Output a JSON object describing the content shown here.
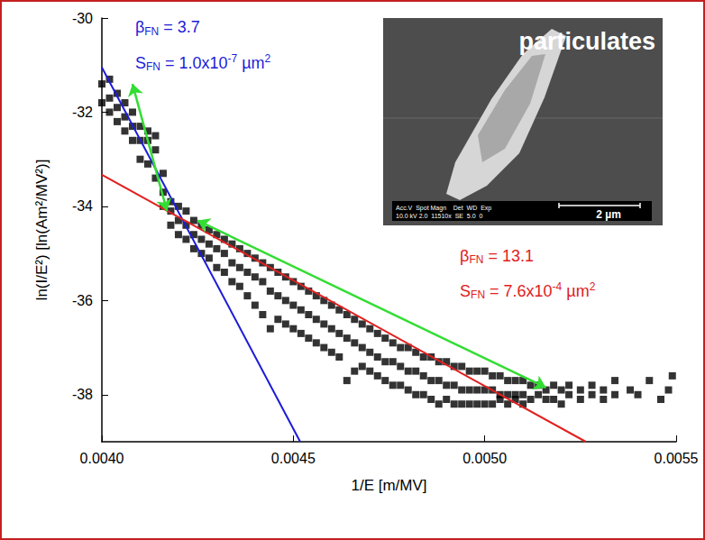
{
  "chart_data": {
    "type": "scatter",
    "xlabel": "1/E [m/MV]",
    "ylabel": "ln(I/E²) [ln(Am²/MV²)]",
    "xlim": [
      0.004,
      0.0055
    ],
    "xticks": [
      {
        "value": 0.004,
        "label": "0.0040"
      },
      {
        "value": 0.0045,
        "label": "0.0045"
      },
      {
        "value": 0.005,
        "label": "0.0050"
      },
      {
        "value": 0.0055,
        "label": "0.0055"
      }
    ],
    "ylim": [
      -39,
      -30
    ],
    "yticks": [
      -38,
      -36,
      -34,
      -32,
      -30
    ],
    "grid": false,
    "series": [
      {
        "type": "scatter",
        "color": "#000000",
        "marker": "square",
        "x": [
          0.004,
          0.004,
          0.00402,
          0.00402,
          0.00402,
          0.00404,
          0.00404,
          0.00404,
          0.00406,
          0.00406,
          0.00406,
          0.00408,
          0.00408,
          0.00408,
          0.0041,
          0.0041,
          0.0041,
          0.00412,
          0.00412,
          0.00412,
          0.00414,
          0.00414,
          0.00414,
          0.00416,
          0.00416,
          0.00416,
          0.00418,
          0.00418,
          0.00418,
          0.0042,
          0.0042,
          0.0042,
          0.00422,
          0.00422,
          0.00422,
          0.00424,
          0.00424,
          0.00424,
          0.00426,
          0.00426,
          0.00426,
          0.00428,
          0.00428,
          0.00428,
          0.0043,
          0.0043,
          0.0043,
          0.00432,
          0.00432,
          0.00432,
          0.00434,
          0.00434,
          0.00434,
          0.00436,
          0.00436,
          0.00436,
          0.00438,
          0.00438,
          0.00438,
          0.0044,
          0.0044,
          0.0044,
          0.00442,
          0.00442,
          0.00442,
          0.00444,
          0.00444,
          0.00444,
          0.00446,
          0.00446,
          0.00446,
          0.00448,
          0.00448,
          0.00448,
          0.0045,
          0.0045,
          0.0045,
          0.00452,
          0.00452,
          0.00452,
          0.00454,
          0.00454,
          0.00454,
          0.00456,
          0.00456,
          0.00456,
          0.00458,
          0.00458,
          0.00458,
          0.0046,
          0.0046,
          0.0046,
          0.00462,
          0.00462,
          0.00462,
          0.00464,
          0.00464,
          0.00464,
          0.00466,
          0.00466,
          0.00466,
          0.00468,
          0.00468,
          0.00468,
          0.0047,
          0.0047,
          0.0047,
          0.00472,
          0.00472,
          0.00472,
          0.00474,
          0.00474,
          0.00474,
          0.00476,
          0.00476,
          0.00476,
          0.00478,
          0.00478,
          0.00478,
          0.0048,
          0.0048,
          0.0048,
          0.00482,
          0.00482,
          0.00482,
          0.00484,
          0.00484,
          0.00484,
          0.00486,
          0.00486,
          0.00486,
          0.00488,
          0.00488,
          0.00488,
          0.0049,
          0.0049,
          0.0049,
          0.00492,
          0.00492,
          0.00492,
          0.00494,
          0.00494,
          0.00494,
          0.00496,
          0.00496,
          0.00496,
          0.00498,
          0.00498,
          0.00498,
          0.005,
          0.005,
          0.005,
          0.00502,
          0.00502,
          0.00502,
          0.00504,
          0.00504,
          0.00504,
          0.00506,
          0.00506,
          0.00506,
          0.00508,
          0.00508,
          0.00508,
          0.0051,
          0.0051,
          0.0051,
          0.00512,
          0.00512,
          0.00514,
          0.00514,
          0.00516,
          0.00516,
          0.00518,
          0.00518,
          0.0052,
          0.0052,
          0.00522,
          0.00522,
          0.00525,
          0.00525,
          0.00528,
          0.00528,
          0.00531,
          0.00531,
          0.00534,
          0.00534,
          0.00538,
          0.0054,
          0.00543,
          0.00546,
          0.00548,
          0.00549
        ],
        "values": [
          -31.4,
          -31.8,
          -31.3,
          -31.7,
          -32.0,
          -31.6,
          -31.9,
          -32.2,
          -31.8,
          -32.1,
          -32.4,
          -32.0,
          -32.3,
          -32.6,
          -32.3,
          -32.6,
          -33.0,
          -32.4,
          -32.6,
          -33.1,
          -32.5,
          -32.8,
          -33.4,
          -33.3,
          -33.7,
          -34.0,
          -33.9,
          -34.1,
          -34.4,
          -34.0,
          -34.3,
          -34.6,
          -34.1,
          -34.4,
          -34.7,
          -34.3,
          -34.6,
          -34.9,
          -34.4,
          -34.7,
          -35.0,
          -34.5,
          -34.8,
          -35.1,
          -34.6,
          -34.9,
          -35.3,
          -34.7,
          -35.0,
          -35.4,
          -34.8,
          -35.2,
          -35.6,
          -34.9,
          -35.3,
          -35.7,
          -35.0,
          -35.4,
          -35.9,
          -35.1,
          -35.5,
          -36.1,
          -35.2,
          -35.6,
          -36.3,
          -35.3,
          -35.8,
          -36.6,
          -35.4,
          -35.9,
          -36.4,
          -35.5,
          -36.0,
          -36.5,
          -35.6,
          -36.1,
          -36.6,
          -35.7,
          -36.2,
          -36.7,
          -35.8,
          -36.3,
          -36.8,
          -35.9,
          -36.4,
          -36.9,
          -36.0,
          -36.5,
          -37.0,
          -36.1,
          -36.6,
          -37.1,
          -36.2,
          -36.7,
          -37.2,
          -36.3,
          -36.8,
          -37.7,
          -36.4,
          -36.9,
          -37.5,
          -36.5,
          -37.0,
          -37.4,
          -36.6,
          -37.1,
          -37.5,
          -36.7,
          -37.2,
          -37.6,
          -36.8,
          -37.3,
          -37.7,
          -36.9,
          -37.3,
          -37.8,
          -37.0,
          -37.4,
          -37.8,
          -37.0,
          -37.5,
          -37.9,
          -37.1,
          -37.5,
          -38.0,
          -37.2,
          -37.6,
          -38.0,
          -37.2,
          -37.7,
          -38.1,
          -37.3,
          -37.7,
          -38.2,
          -37.3,
          -37.8,
          -38.1,
          -37.4,
          -37.8,
          -38.2,
          -37.4,
          -37.9,
          -38.2,
          -37.5,
          -37.9,
          -38.2,
          -37.5,
          -37.9,
          -38.2,
          -37.5,
          -37.9,
          -38.2,
          -37.6,
          -37.9,
          -38.2,
          -37.6,
          -38.0,
          -38.1,
          -37.7,
          -38.0,
          -38.2,
          -37.7,
          -38.0,
          -38.1,
          -37.7,
          -38.0,
          -38.2,
          -37.8,
          -38.1,
          -37.8,
          -38.0,
          -37.9,
          -38.1,
          -37.8,
          -38.1,
          -37.9,
          -38.2,
          -37.8,
          -38.0,
          -37.9,
          -38.1,
          -37.8,
          -38.0,
          -37.9,
          -38.1,
          -37.7,
          -38.0,
          -37.9,
          -38.0,
          -37.7,
          -38.1,
          -37.9,
          -37.6
        ]
      },
      {
        "type": "line",
        "color": "#1c1cd8",
        "x": [
          0.004,
          0.004518
        ],
        "values": [
          -31.05,
          -39
        ]
      },
      {
        "type": "line",
        "color": "#e02020",
        "x": [
          0.004,
          0.005264
        ],
        "values": [
          -33.33,
          -39
        ]
      }
    ],
    "arrows": [
      {
        "color": "#33dd33",
        "x": [
          0.00408,
          0.00417
        ],
        "values": [
          -31.4,
          -34.1
        ]
      },
      {
        "color": "#33dd33",
        "x": [
          0.00425,
          0.00516
        ],
        "values": [
          -34.3,
          -37.85
        ]
      }
    ],
    "annotations": [
      {
        "color": "#1c1cd8",
        "x": 0.004087,
        "y": -30.2,
        "parts": [
          {
            "t": "β"
          },
          {
            "t": "FN",
            "sub": true
          },
          {
            "t": " = 3.7"
          }
        ]
      },
      {
        "color": "#1c1cd8",
        "x": 0.004087,
        "y": -30.95,
        "parts": [
          {
            "t": "S"
          },
          {
            "t": "FN",
            "sub": true
          },
          {
            "t": " = 1.0x10"
          },
          {
            "t": "-7",
            "sup": true
          },
          {
            "t": " µm"
          },
          {
            "t": "2",
            "sup": true
          }
        ]
      },
      {
        "color": "#e02020",
        "x": 0.004935,
        "y": -35.05,
        "parts": [
          {
            "t": "β"
          },
          {
            "t": "FN",
            "sub": true
          },
          {
            "t": " = 13.1"
          }
        ]
      },
      {
        "color": "#e02020",
        "x": 0.004935,
        "y": -35.8,
        "parts": [
          {
            "t": "S"
          },
          {
            "t": "FN",
            "sub": true
          },
          {
            "t": " = 7.6x10"
          },
          {
            "t": "-4",
            "sup": true
          },
          {
            "t": " µm"
          },
          {
            "t": "2",
            "sup": true
          }
        ]
      }
    ],
    "inset": {
      "title": "particulates",
      "scale_bar": "2 µm",
      "info_header": "Acc.V  Spot Magn    Det  WD  Exp",
      "info_values": "10.0 kV 2.0  11510x  SE  5.0  0"
    }
  }
}
